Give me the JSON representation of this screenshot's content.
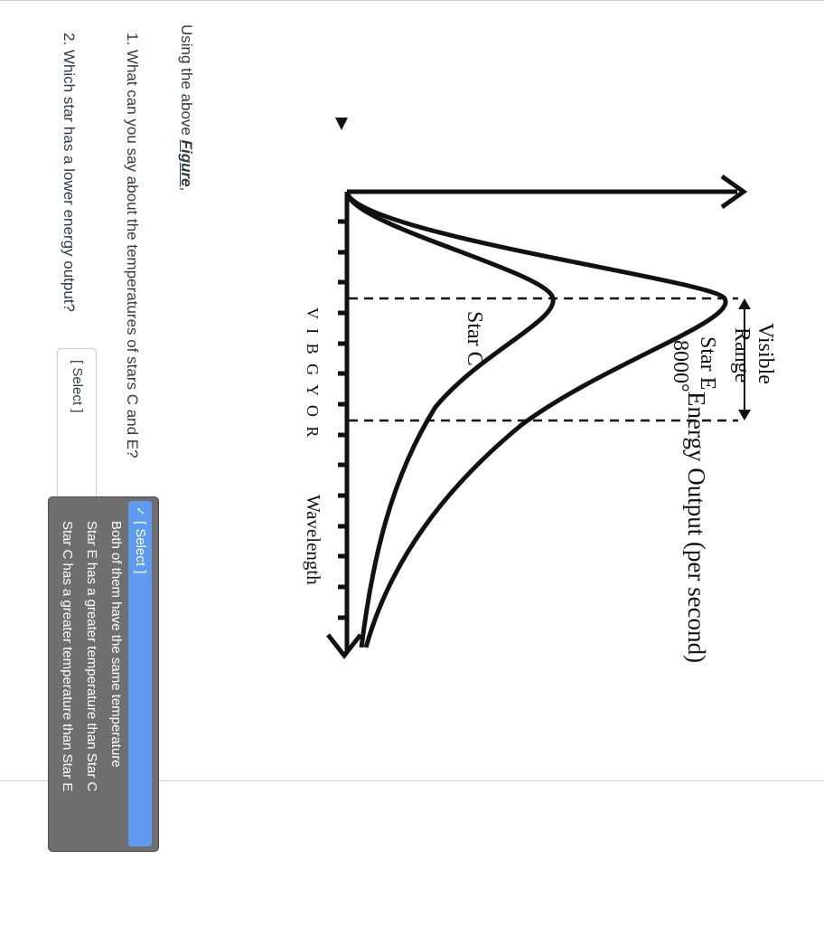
{
  "figure": {
    "energy_axis_label": "Energy Output (per second)",
    "wavelength_axis_label": "Wavelength",
    "spectrum_letters": "V I B G Y O R",
    "visible_range_label_1": "Visible",
    "visible_range_label_2": "Range",
    "star_e_label": "Star E",
    "star_e_temp": "8000°",
    "star_c_label": "Star C"
  },
  "question": {
    "intro_text": "Using the above ",
    "intro_link": "Figure",
    "intro_suffix": ",",
    "q1_text": "1. What can you say about the temperatures of stars C and E?",
    "q2_text": "2. Which star has a lower energy output?",
    "q2_select_value": "[ Select ]"
  },
  "dropdown": {
    "check_mark": "✓",
    "options": [
      "[ Select ]",
      "Both of them have the same temperature",
      "Star E has a greater temperature than Star C",
      "Star C has a greater temperature than Star E"
    ],
    "selected_index": 0
  },
  "colors": {
    "dropdown_bg": "#6f6f6f",
    "dropdown_selected": "#5e9bf0",
    "text": "#2d3b45"
  }
}
